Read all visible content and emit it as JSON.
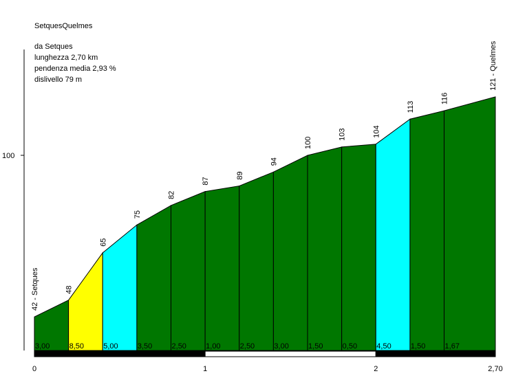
{
  "info": {
    "title": "SetquesQuelmes",
    "line1": "da Setques",
    "line2": "lunghezza 2,70 km",
    "line3": "pendenza media 2,93 %",
    "line4": "dislivello 79 m"
  },
  "chart_data": {
    "type": "area",
    "title": "SetquesQuelmes",
    "xlabel": "",
    "ylabel": "",
    "xlim": [
      0,
      2.7
    ],
    "x_ticks": [
      {
        "value": 0,
        "label": "0"
      },
      {
        "value": 1,
        "label": "1"
      },
      {
        "value": 2,
        "label": "2"
      },
      {
        "value": 2.7,
        "label": "2,70"
      }
    ],
    "y_ticks": [
      {
        "value": 100,
        "label": "100"
      }
    ],
    "points": [
      {
        "x": 0.0,
        "y": 42,
        "label": "42 - Setques"
      },
      {
        "x": 0.2,
        "y": 48,
        "label": "48"
      },
      {
        "x": 0.4,
        "y": 65,
        "label": "65"
      },
      {
        "x": 0.6,
        "y": 75,
        "label": "75"
      },
      {
        "x": 0.8,
        "y": 82,
        "label": "82"
      },
      {
        "x": 1.0,
        "y": 87,
        "label": "87"
      },
      {
        "x": 1.2,
        "y": 89,
        "label": "89"
      },
      {
        "x": 1.4,
        "y": 94,
        "label": "94"
      },
      {
        "x": 1.6,
        "y": 100,
        "label": "100"
      },
      {
        "x": 1.8,
        "y": 103,
        "label": "103"
      },
      {
        "x": 2.0,
        "y": 104,
        "label": "104"
      },
      {
        "x": 2.2,
        "y": 113,
        "label": "113"
      },
      {
        "x": 2.4,
        "y": 116,
        "label": "116"
      },
      {
        "x": 2.7,
        "y": 121,
        "label": "121 - Quelmes"
      }
    ],
    "segments": [
      {
        "gradient": "3,00",
        "color": "#007700"
      },
      {
        "gradient": "8,50",
        "color": "#ffff00"
      },
      {
        "gradient": "5,00",
        "color": "#00ffff"
      },
      {
        "gradient": "3,50",
        "color": "#007700"
      },
      {
        "gradient": "2,50",
        "color": "#007700"
      },
      {
        "gradient": "1,00",
        "color": "#007700"
      },
      {
        "gradient": "2,50",
        "color": "#007700"
      },
      {
        "gradient": "3,00",
        "color": "#007700"
      },
      {
        "gradient": "1,50",
        "color": "#007700"
      },
      {
        "gradient": "0,50",
        "color": "#007700"
      },
      {
        "gradient": "4,50",
        "color": "#00ffff"
      },
      {
        "gradient": "1,50",
        "color": "#007700"
      },
      {
        "gradient": "1,67",
        "color": "#007700"
      }
    ],
    "km_bar": [
      {
        "from": 0,
        "to": 1,
        "color": "#000000"
      },
      {
        "from": 1,
        "to": 2,
        "color": "#ffffff"
      },
      {
        "from": 2,
        "to": 2.7,
        "color": "#000000"
      }
    ],
    "colors": {
      "flat": "#007700",
      "medium": "#00ffff",
      "steep": "#ffff00",
      "outline": "#000000"
    }
  }
}
